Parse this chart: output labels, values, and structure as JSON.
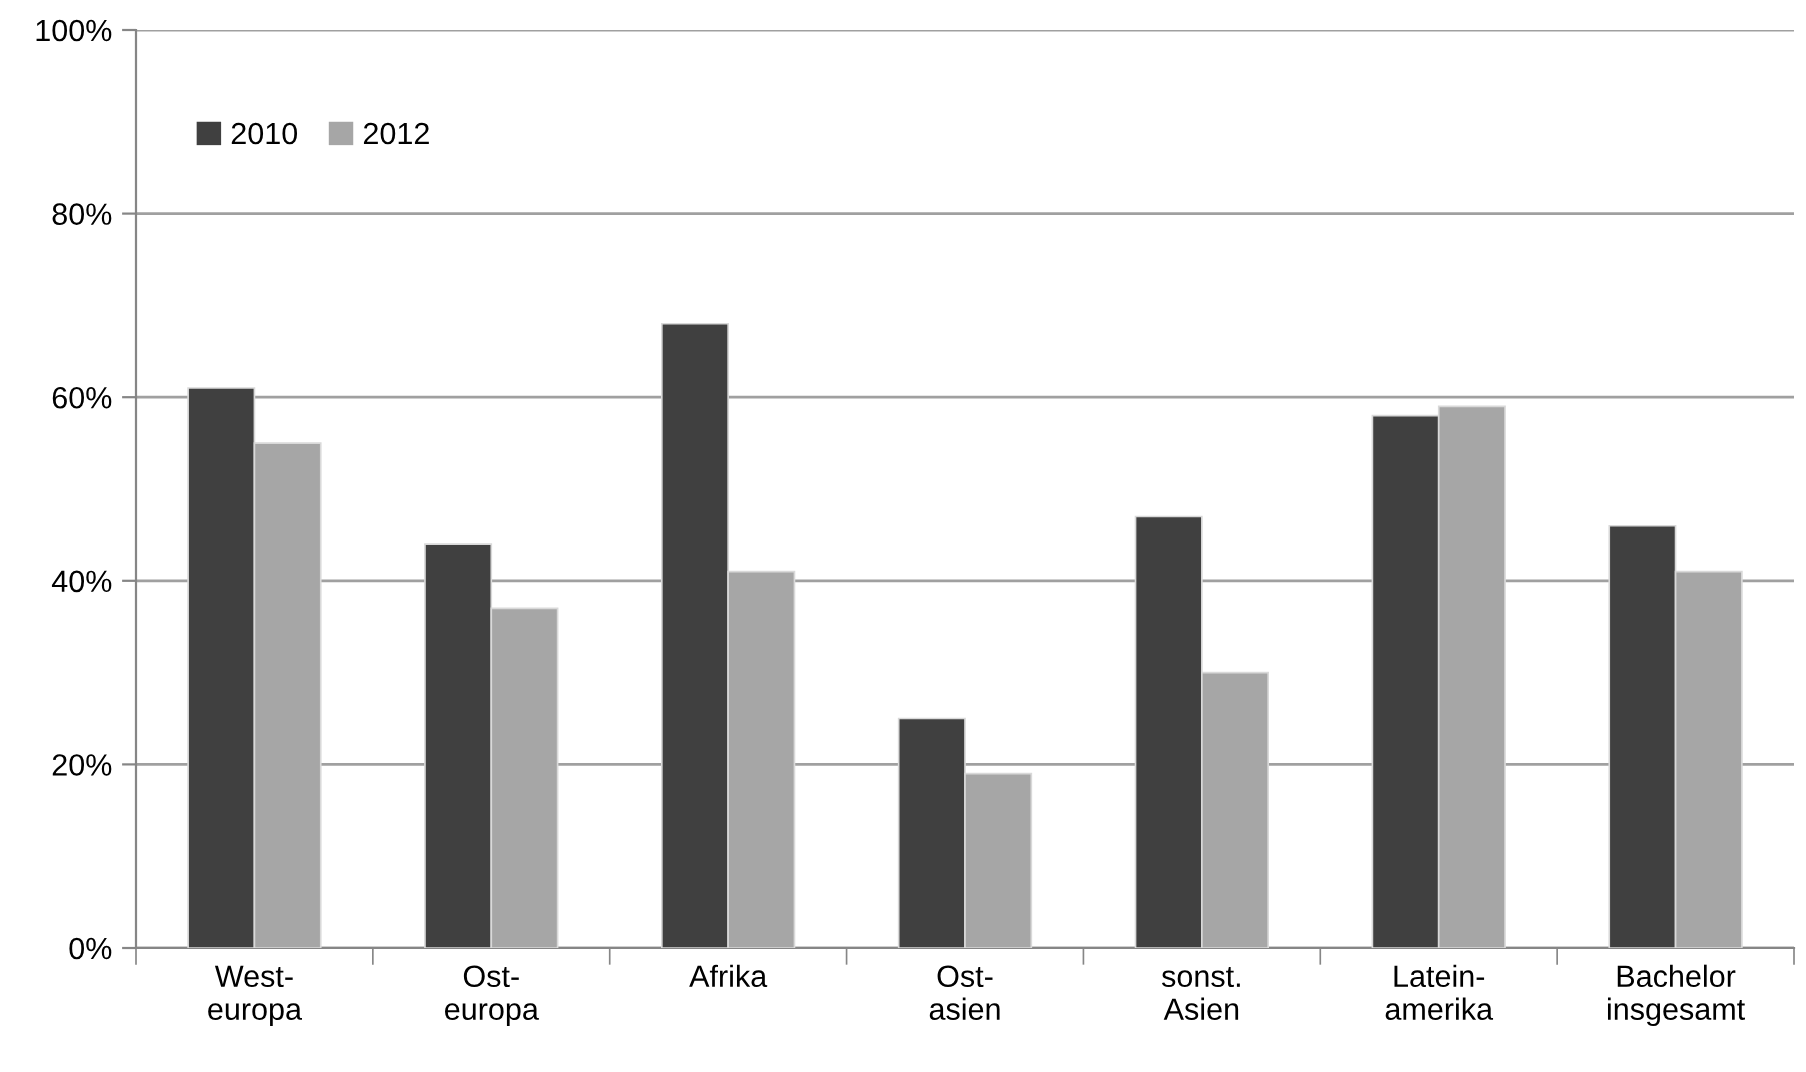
{
  "chart_data": {
    "type": "bar",
    "categories": [
      "West-\neuropa",
      "Ost-\neuropa",
      "Afrika",
      "Ost-\nasien",
      "sonst.\nAsien",
      "Latein-\namerika",
      "Bachelor\ninsgesamt"
    ],
    "series": [
      {
        "name": "2010",
        "color": "#404040",
        "values": [
          61,
          44,
          68,
          25,
          47,
          58,
          46
        ]
      },
      {
        "name": "2012",
        "color": "#a6a6a6",
        "values": [
          55,
          37,
          41,
          19,
          30,
          59,
          41
        ]
      }
    ],
    "ylim": [
      0,
      100
    ],
    "yticks": [
      {
        "value": 0,
        "label": "0%"
      },
      {
        "value": 20,
        "label": "20%"
      },
      {
        "value": 40,
        "label": "40%"
      },
      {
        "value": 60,
        "label": "60%"
      },
      {
        "value": 80,
        "label": "80%"
      },
      {
        "value": 100,
        "label": "100%"
      }
    ],
    "grid": "y",
    "legend": "top left"
  }
}
